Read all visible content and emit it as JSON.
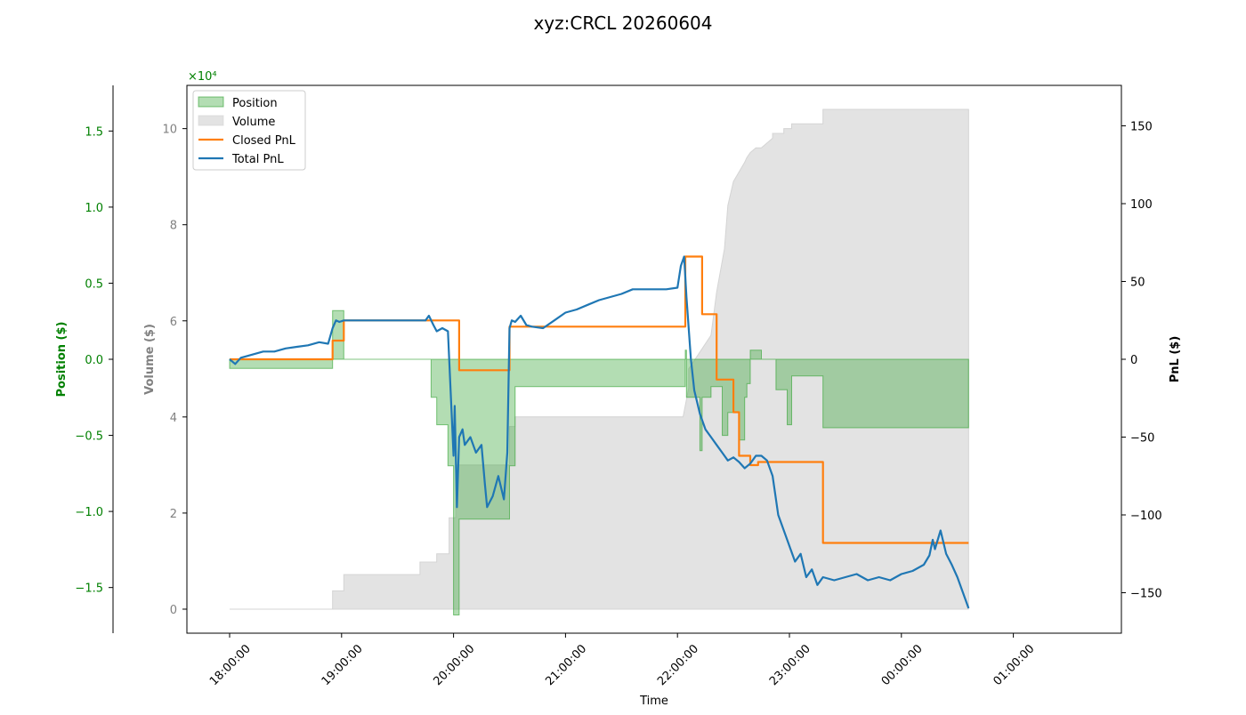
{
  "chart_data": {
    "type": "line",
    "title": "xyz:CRCL 20260604",
    "xlabel": "Time",
    "x_ticks": [
      "18:00:00",
      "19:00:00",
      "20:00:00",
      "21:00:00",
      "22:00:00",
      "23:00:00",
      "00:00:00",
      "01:00:00"
    ],
    "axes": {
      "position": {
        "label": "Position ($)",
        "ticks": [
          "1.5",
          "1.0",
          "0.5",
          "0.0",
          "−0.5",
          "−1.0",
          "−1.5"
        ],
        "tick_values": [
          1.5,
          1.0,
          0.5,
          0.0,
          -0.5,
          -1.0,
          -1.5
        ],
        "ylim": [
          -1.8,
          1.8
        ],
        "color": "#008000"
      },
      "volume": {
        "label": "Volume ($)",
        "ticks": [
          "10",
          "8",
          "6",
          "4",
          "2",
          "0"
        ],
        "tick_values": [
          10,
          8,
          6,
          4,
          2,
          0
        ],
        "scale_label": "×10⁴",
        "ylim": [
          -0.5,
          10.9
        ],
        "color": "#808080"
      },
      "pnl": {
        "label": "PnL ($)",
        "ticks": [
          "150",
          "100",
          "50",
          "0",
          "−50",
          "−100",
          "−150"
        ],
        "tick_values": [
          150,
          100,
          50,
          0,
          -50,
          -100,
          -150
        ],
        "ylim": [
          -176,
          176
        ],
        "color": "#000000"
      }
    },
    "legend_position": "top-left",
    "legend": [
      {
        "label": "Position",
        "kind": "patch",
        "color": "#2ca02c"
      },
      {
        "label": "Volume",
        "kind": "patch",
        "color": "#c8c8c8"
      },
      {
        "label": "Closed PnL",
        "kind": "line",
        "color": "#ff7f0e"
      },
      {
        "label": "Total PnL",
        "kind": "line",
        "color": "#1f77b4"
      }
    ],
    "series": [
      {
        "name": "Position",
        "type": "area",
        "color": "#2ca02c",
        "x_hours": [
          0,
          0,
          0.92,
          0.92,
          1.02,
          1.02,
          1.6,
          1.8,
          1.8,
          1.85,
          1.85,
          1.95,
          1.95,
          2.0,
          2.0,
          2.05,
          2.05,
          2.5,
          2.5,
          2.55,
          2.55,
          4.07,
          4.07,
          4.08,
          4.08,
          4.2,
          4.2,
          4.22,
          4.22,
          4.3,
          4.3,
          4.4,
          4.4,
          4.45,
          4.45,
          4.55,
          4.55,
          4.6,
          4.6,
          4.62,
          4.62,
          4.65,
          4.65,
          4.75,
          4.75,
          4.88,
          4.88,
          4.98,
          4.98,
          5.02,
          5.02,
          5.3,
          5.3,
          6.25,
          6.25,
          6.6,
          6.6
        ],
        "values": [
          0,
          -0.06,
          -0.06,
          0.32,
          0.32,
          0.0,
          0.0,
          0.0,
          -0.25,
          -0.25,
          -0.43,
          -0.43,
          -0.7,
          -0.7,
          -1.68,
          -1.68,
          -1.05,
          -1.05,
          -0.7,
          -0.7,
          -0.18,
          -0.18,
          0.06,
          0.06,
          -0.25,
          -0.25,
          -0.6,
          -0.6,
          -0.25,
          -0.25,
          -0.18,
          -0.18,
          -0.5,
          -0.5,
          -0.35,
          -0.35,
          -0.53,
          -0.53,
          -0.25,
          -0.25,
          -0.16,
          -0.16,
          0.06,
          0.06,
          0.0,
          0.0,
          -0.2,
          -0.2,
          -0.43,
          -0.43,
          -0.11,
          -0.11,
          -0.45,
          -0.45,
          -0.45,
          -0.45,
          0
        ]
      },
      {
        "name": "Volume",
        "type": "area",
        "color": "#c8c8c8",
        "unit": "×10⁴ $",
        "x_hours": [
          0,
          0.92,
          0.92,
          1.02,
          1.02,
          1.7,
          1.7,
          1.85,
          1.85,
          1.96,
          1.96,
          2.02,
          2.02,
          2.5,
          2.5,
          2.55,
          2.55,
          4.05,
          4.1,
          4.1,
          4.3,
          4.35,
          4.42,
          4.45,
          4.5,
          4.55,
          4.6,
          4.62,
          4.65,
          4.7,
          4.75,
          4.85,
          4.85,
          4.95,
          4.95,
          5.02,
          5.02,
          5.3,
          5.3,
          6.25,
          6.25,
          6.6
        ],
        "values": [
          0,
          0,
          0.38,
          0.38,
          0.72,
          0.72,
          0.98,
          0.98,
          1.15,
          1.15,
          1.9,
          1.9,
          3.0,
          3.0,
          3.8,
          3.8,
          4.0,
          4.0,
          4.6,
          5.0,
          5.7,
          6.6,
          7.5,
          8.4,
          8.9,
          9.1,
          9.3,
          9.4,
          9.5,
          9.6,
          9.6,
          9.8,
          9.9,
          9.9,
          10.0,
          10.0,
          10.1,
          10.1,
          10.4,
          10.4,
          10.4,
          10.4
        ]
      },
      {
        "name": "Closed PnL",
        "type": "step",
        "color": "#ff7f0e",
        "unit": "$",
        "x_hours": [
          0,
          0.92,
          0.92,
          1.02,
          1.02,
          2.05,
          2.05,
          2.5,
          2.5,
          4.07,
          4.07,
          4.22,
          4.22,
          4.35,
          4.35,
          4.5,
          4.5,
          4.55,
          4.55,
          4.65,
          4.65,
          4.72,
          4.72,
          4.98,
          4.98,
          5.3,
          5.3,
          6.6
        ],
        "values": [
          0,
          0,
          12,
          12,
          25,
          25,
          -7,
          -7,
          21,
          21,
          66,
          66,
          29,
          29,
          -13,
          -13,
          -34,
          -34,
          -62,
          -62,
          -68,
          -68,
          -66,
          -66,
          -66,
          -66,
          -118,
          -118
        ]
      },
      {
        "name": "Total PnL",
        "type": "line",
        "color": "#1f77b4",
        "unit": "$",
        "x_hours": [
          0,
          0.05,
          0.1,
          0.2,
          0.3,
          0.4,
          0.5,
          0.6,
          0.7,
          0.8,
          0.88,
          0.92,
          0.95,
          0.98,
          1.02,
          1.1,
          1.2,
          1.4,
          1.6,
          1.75,
          1.78,
          1.82,
          1.85,
          1.9,
          1.95,
          2.0,
          2.01,
          2.03,
          2.05,
          2.08,
          2.1,
          2.15,
          2.2,
          2.25,
          2.28,
          2.3,
          2.35,
          2.4,
          2.45,
          2.48,
          2.5,
          2.52,
          2.55,
          2.6,
          2.65,
          2.7,
          2.8,
          2.9,
          3.0,
          3.1,
          3.2,
          3.3,
          3.4,
          3.5,
          3.6,
          3.7,
          3.8,
          3.9,
          4.0,
          4.03,
          4.06,
          4.08,
          4.1,
          4.12,
          4.15,
          4.2,
          4.25,
          4.3,
          4.35,
          4.4,
          4.45,
          4.5,
          4.55,
          4.6,
          4.65,
          4.7,
          4.75,
          4.8,
          4.85,
          4.9,
          4.95,
          5.0,
          5.05,
          5.1,
          5.15,
          5.2,
          5.25,
          5.3,
          5.4,
          5.5,
          5.6,
          5.7,
          5.8,
          5.9,
          6.0,
          6.1,
          6.2,
          6.25,
          6.28,
          6.3,
          6.35,
          6.4,
          6.45,
          6.5,
          6.55,
          6.6
        ],
        "values": [
          0,
          -3,
          1,
          3,
          5,
          5,
          7,
          8,
          9,
          11,
          10,
          20,
          25,
          24,
          25,
          25,
          25,
          25,
          25,
          25,
          28,
          22,
          18,
          20,
          18,
          -62,
          -30,
          -95,
          -50,
          -45,
          -55,
          -50,
          -60,
          -55,
          -80,
          -95,
          -88,
          -75,
          -90,
          -60,
          20,
          25,
          24,
          28,
          22,
          21,
          20,
          25,
          30,
          32,
          35,
          38,
          40,
          42,
          45,
          45,
          45,
          45,
          46,
          60,
          66,
          40,
          20,
          0,
          -20,
          -35,
          -45,
          -50,
          -55,
          -60,
          -65,
          -63,
          -66,
          -70,
          -67,
          -62,
          -62,
          -65,
          -75,
          -100,
          -110,
          -120,
          -130,
          -125,
          -140,
          -135,
          -145,
          -140,
          -142,
          -140,
          -138,
          -142,
          -140,
          -142,
          -138,
          -136,
          -132,
          -126,
          -116,
          -122,
          -110,
          -125,
          -132,
          -140,
          -150,
          -160
        ]
      }
    ]
  }
}
